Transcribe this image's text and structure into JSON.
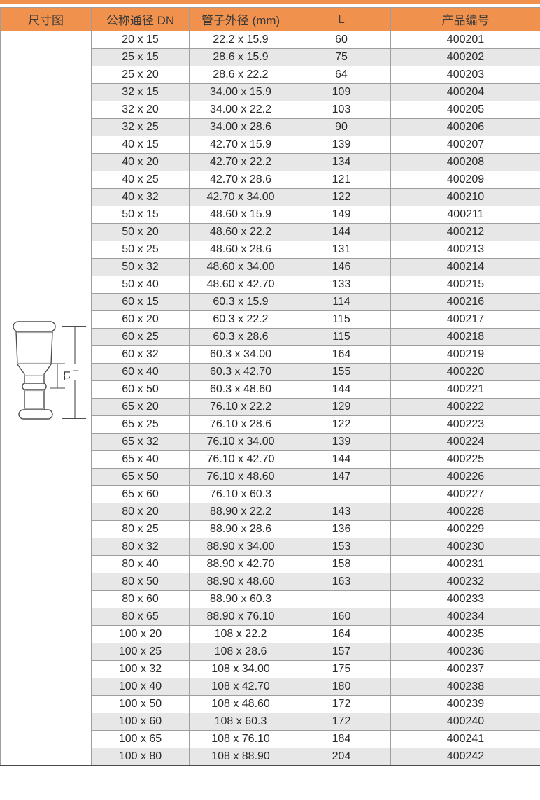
{
  "page": {
    "accent_color": "#F0914E",
    "stripe_color": "#E7E7E7",
    "border_color": "#9E9E9E",
    "text_color": "#2A2A2A"
  },
  "diagram": {
    "type": "reducer-coupling-dimension-drawing",
    "labels": {
      "full_length": "L",
      "partial_length": "L1"
    }
  },
  "table": {
    "columns": [
      {
        "key": "diagram",
        "label": "尺寸图"
      },
      {
        "key": "dn",
        "label": "公称通径 DN"
      },
      {
        "key": "od",
        "label": "管子外径 (mm)"
      },
      {
        "key": "l",
        "label": "L"
      },
      {
        "key": "code",
        "label": "产品编号"
      }
    ],
    "rows": [
      {
        "dn": "20 x 15",
        "od": "22.2 x 15.9",
        "l": "60",
        "code": "400201"
      },
      {
        "dn": "25 x 15",
        "od": "28.6 x 15.9",
        "l": "75",
        "code": "400202"
      },
      {
        "dn": "25 x 20",
        "od": "28.6 x 22.2",
        "l": "64",
        "code": "400203"
      },
      {
        "dn": "32 x 15",
        "od": "34.00 x 15.9",
        "l": "109",
        "code": "400204"
      },
      {
        "dn": "32 x 20",
        "od": "34.00 x 22.2",
        "l": "103",
        "code": "400205"
      },
      {
        "dn": "32 x 25",
        "od": "34.00 x 28.6",
        "l": "90",
        "code": "400206"
      },
      {
        "dn": "40 x 15",
        "od": "42.70 x 15.9",
        "l": "139",
        "code": "400207"
      },
      {
        "dn": "40 x 20",
        "od": "42.70 x 22.2",
        "l": "134",
        "code": "400208"
      },
      {
        "dn": "40 x 25",
        "od": "42.70 x 28.6",
        "l": "121",
        "code": "400209"
      },
      {
        "dn": "40 x 32",
        "od": "42.70 x 34.00",
        "l": "122",
        "code": "400210"
      },
      {
        "dn": "50 x 15",
        "od": "48.60 x 15.9",
        "l": "149",
        "code": "400211"
      },
      {
        "dn": "50 x 20",
        "od": "48.60 x 22.2",
        "l": "144",
        "code": "400212"
      },
      {
        "dn": "50 x 25",
        "od": "48.60 x 28.6",
        "l": "131",
        "code": "400213"
      },
      {
        "dn": "50 x 32",
        "od": "48.60 x 34.00",
        "l": "146",
        "code": "400214"
      },
      {
        "dn": "50 x 40",
        "od": "48.60 x 42.70",
        "l": "133",
        "code": "400215"
      },
      {
        "dn": "60 x 15",
        "od": "60.3 x 15.9",
        "l": "114",
        "code": "400216"
      },
      {
        "dn": "60 x 20",
        "od": "60.3 x 22.2",
        "l": "115",
        "code": "400217"
      },
      {
        "dn": "60 x 25",
        "od": "60.3 x 28.6",
        "l": "115",
        "code": "400218"
      },
      {
        "dn": "60 x 32",
        "od": "60.3 x 34.00",
        "l": "164",
        "code": "400219"
      },
      {
        "dn": "60 x 40",
        "od": "60.3 x 42.70",
        "l": "155",
        "code": "400220"
      },
      {
        "dn": "60 x 50",
        "od": "60.3 x 48.60",
        "l": "144",
        "code": "400221"
      },
      {
        "dn": "65 x 20",
        "od": "76.10 x 22.2",
        "l": "129",
        "code": "400222"
      },
      {
        "dn": "65 x 25",
        "od": "76.10 x 28.6",
        "l": "122",
        "code": "400223"
      },
      {
        "dn": "65 x 32",
        "od": "76.10 x 34.00",
        "l": "139",
        "code": "400224"
      },
      {
        "dn": "65 x 40",
        "od": "76.10 x 42.70",
        "l": "144",
        "code": "400225"
      },
      {
        "dn": "65 x 50",
        "od": "76.10 x 48.60",
        "l": "147",
        "code": "400226"
      },
      {
        "dn": "65 x 60",
        "od": "76.10 x 60.3",
        "l": "",
        "code": "400227"
      },
      {
        "dn": "80 x 20",
        "od": "88.90 x 22.2",
        "l": "143",
        "code": "400228"
      },
      {
        "dn": "80 x 25",
        "od": "88.90 x 28.6",
        "l": "136",
        "code": "400229"
      },
      {
        "dn": "80 x 32",
        "od": "88.90 x 34.00",
        "l": "153",
        "code": "400230"
      },
      {
        "dn": "80 x 40",
        "od": "88.90 x 42.70",
        "l": "158",
        "code": "400231"
      },
      {
        "dn": "80 x 50",
        "od": "88.90 x 48.60",
        "l": "163",
        "code": "400232"
      },
      {
        "dn": "80 x 60",
        "od": "88.90 x 60.3",
        "l": "",
        "code": "400233"
      },
      {
        "dn": "80 x 65",
        "od": "88.90 x 76.10",
        "l": "160",
        "code": "400234"
      },
      {
        "dn": "100 x 20",
        "od": "108 x 22.2",
        "l": "164",
        "code": "400235"
      },
      {
        "dn": "100 x 25",
        "od": "108 x 28.6",
        "l": "157",
        "code": "400236"
      },
      {
        "dn": "100 x 32",
        "od": "108 x 34.00",
        "l": "175",
        "code": "400237"
      },
      {
        "dn": "100 x 40",
        "od": "108 x 42.70",
        "l": "180",
        "code": "400238"
      },
      {
        "dn": "100 x 50",
        "od": "108 x 48.60",
        "l": "172",
        "code": "400239"
      },
      {
        "dn": "100 x 60",
        "od": "108 x 60.3",
        "l": "172",
        "code": "400240"
      },
      {
        "dn": "100 x 65",
        "od": "108 x 76.10",
        "l": "184",
        "code": "400241"
      },
      {
        "dn": "100 x 80",
        "od": "108 x 88.90",
        "l": "204",
        "code": "400242"
      }
    ]
  }
}
